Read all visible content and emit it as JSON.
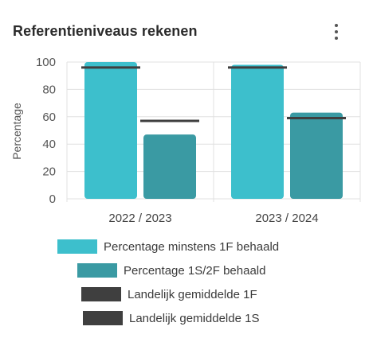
{
  "card": {
    "title": "Referentieniveaus rekenen",
    "menu_icon": "vertical-ellipsis-icon"
  },
  "colors": {
    "series_1f": "#3dbfcc",
    "series_1s": "#3a9aa3",
    "avg_line": "#3f3f3f",
    "grid": "#e0e0e0",
    "axis_text": "#555555"
  },
  "chart_data": {
    "type": "bar",
    "title": "",
    "ylabel": "Percentage",
    "xlabel": "",
    "ylim": [
      0,
      100
    ],
    "yticks": [
      0,
      20,
      40,
      60,
      80,
      100
    ],
    "categories": [
      "2022 / 2023",
      "2023 / 2024"
    ],
    "series": [
      {
        "name": "Percentage minstens 1F behaald",
        "values": [
          100,
          98
        ]
      },
      {
        "name": "Percentage 1S/2F behaald",
        "values": [
          47,
          63
        ]
      }
    ],
    "reference_lines": [
      {
        "name": "Landelijk gemiddelde 1F",
        "values": [
          96,
          96
        ]
      },
      {
        "name": "Landelijk gemiddelde 1S",
        "values": [
          57,
          59
        ]
      }
    ],
    "grid": true
  },
  "legend": [
    {
      "label": "Percentage minstens 1F behaald",
      "swatch": "bar-1f"
    },
    {
      "label": "Percentage 1S/2F behaald",
      "swatch": "bar-1s"
    },
    {
      "label": "Landelijk gemiddelde 1F",
      "swatch": "line-1f"
    },
    {
      "label": "Landelijk gemiddelde 1S",
      "swatch": "line-1s"
    }
  ]
}
